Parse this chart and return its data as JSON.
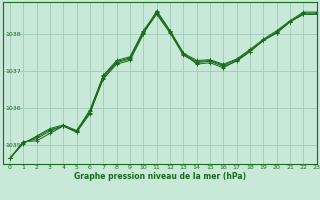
{
  "bg_color": "#c8e8d8",
  "grid_color": "#a0c8b8",
  "line_color": "#1a6b1a",
  "xlabel": "Graphe pression niveau de la mer (hPa)",
  "xlim": [
    -0.5,
    23
  ],
  "ylim": [
    1034.5,
    1038.85
  ],
  "yticks": [
    1035,
    1036,
    1037,
    1038
  ],
  "xticks": [
    0,
    1,
    2,
    3,
    4,
    5,
    6,
    7,
    8,
    9,
    10,
    11,
    12,
    13,
    14,
    15,
    16,
    17,
    18,
    19,
    20,
    21,
    22,
    23
  ],
  "series": [
    [
      1034.65,
      1035.1,
      1035.12,
      1035.32,
      1035.52,
      1035.38,
      1035.88,
      1036.78,
      1037.18,
      1037.28,
      1037.98,
      1038.62,
      1038.08,
      1037.48,
      1037.18,
      1037.22,
      1037.08,
      1037.28,
      1037.52,
      1037.82,
      1038.02,
      1038.32,
      1038.52,
      1038.52
    ],
    [
      1034.65,
      1035.08,
      1035.18,
      1035.38,
      1035.52,
      1035.35,
      1035.85,
      1036.82,
      1037.22,
      1037.32,
      1038.02,
      1038.52,
      1038.02,
      1037.42,
      1037.22,
      1037.26,
      1037.12,
      1037.26,
      1037.52,
      1037.82,
      1038.02,
      1038.32,
      1038.52,
      1038.52
    ],
    [
      1034.65,
      1035.06,
      1035.22,
      1035.42,
      1035.52,
      1035.37,
      1035.92,
      1036.85,
      1037.25,
      1037.35,
      1038.05,
      1038.55,
      1038.05,
      1037.45,
      1037.25,
      1037.28,
      1037.15,
      1037.3,
      1037.55,
      1037.82,
      1038.05,
      1038.32,
      1038.55,
      1038.55
    ],
    [
      1034.65,
      1035.05,
      1035.25,
      1035.45,
      1035.55,
      1035.4,
      1035.95,
      1036.88,
      1037.28,
      1037.38,
      1038.08,
      1038.58,
      1038.08,
      1037.48,
      1037.28,
      1037.3,
      1037.18,
      1037.32,
      1037.58,
      1037.85,
      1038.08,
      1038.35,
      1038.58,
      1038.58
    ]
  ]
}
